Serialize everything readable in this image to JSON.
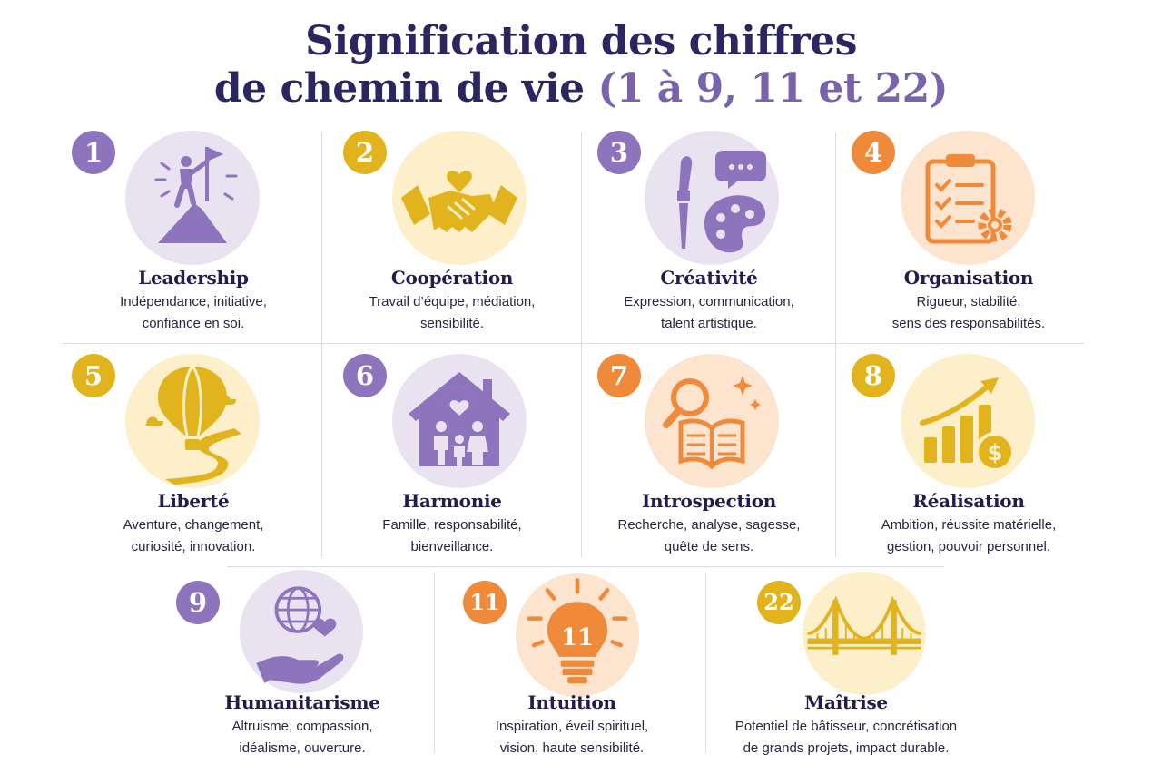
{
  "title": {
    "line1": "Signification des chiffres",
    "line2_main": "de chemin de vie",
    "line2_accent": "(1 à 9, 11 et 22)"
  },
  "colors": {
    "purple": "#8e74bd",
    "gold": "#e1b31c",
    "orange": "#f08a3b",
    "navy": "#2c2660"
  },
  "cards": [
    {
      "number": "1",
      "title": "Leadership",
      "desc1": "Indépendance, initiative,",
      "desc2": "confiance en soi.",
      "icon": "mountain-flag-icon",
      "color": "purple"
    },
    {
      "number": "2",
      "title": "Coopération",
      "desc1": "Travail d’équipe, médiation,",
      "desc2": "sensibilité.",
      "icon": "handshake-icon",
      "color": "gold"
    },
    {
      "number": "3",
      "title": "Créativité",
      "desc1": "Expression, communication,",
      "desc2": "talent artistique.",
      "icon": "palette-icon",
      "color": "purple"
    },
    {
      "number": "4",
      "title": "Organisation",
      "desc1": "Rigueur, stabilité,",
      "desc2": "sens des responsabilités.",
      "icon": "clipboard-gear-icon",
      "color": "orange"
    },
    {
      "number": "5",
      "title": "Liberté",
      "desc1": "Aventure, changement,",
      "desc2": "curiosité, innovation.",
      "icon": "hot-air-balloon-icon",
      "color": "gold"
    },
    {
      "number": "6",
      "title": "Harmonie",
      "desc1": "Famille, responsabilité,",
      "desc2": "bienveillance.",
      "icon": "family-house-icon",
      "color": "purple"
    },
    {
      "number": "7",
      "title": "Introspection",
      "desc1": "Recherche, analyse, sagesse,",
      "desc2": "quête de sens.",
      "icon": "book-magnifier-icon",
      "color": "orange"
    },
    {
      "number": "8",
      "title": "Réalisation",
      "desc1": "Ambition, réussite matérielle,",
      "desc2": "gestion, pouvoir personnel.",
      "icon": "growth-chart-icon",
      "color": "gold"
    },
    {
      "number": "9",
      "title": "Humanitarisme",
      "desc1": "Altruisme, compassion,",
      "desc2": "idéalisme, ouverture.",
      "icon": "globe-hand-icon",
      "color": "purple"
    },
    {
      "number": "11",
      "title": "Intuition",
      "desc1": "Inspiration, éveil spirituel,",
      "desc2": "vision, haute sensibilité.",
      "icon": "lightbulb-icon",
      "color": "orange",
      "icon_text": "11"
    },
    {
      "number": "22",
      "title": "Maîtrise",
      "desc1": "Potentiel de bâtisseur, concrétisation",
      "desc2": "de grands projets, impact durable.",
      "icon": "bridge-icon",
      "color": "gold"
    }
  ]
}
